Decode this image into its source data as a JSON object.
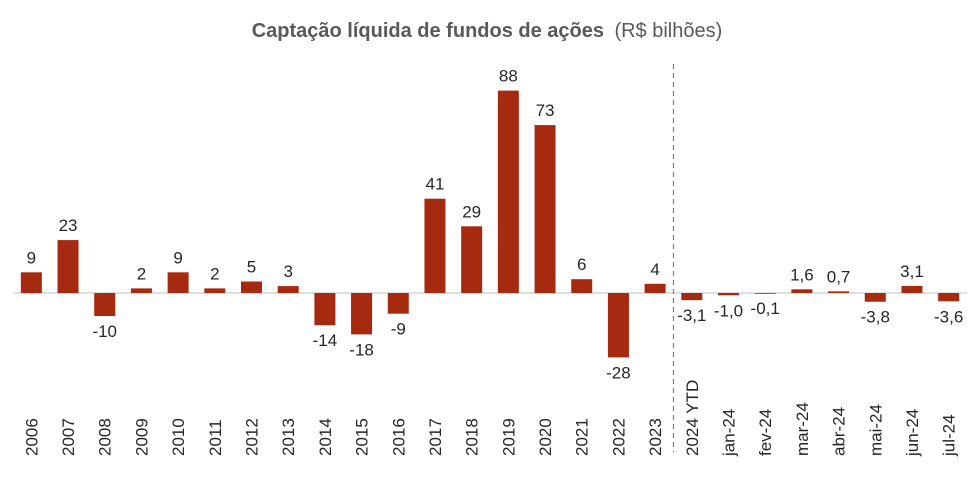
{
  "title": "Captação líquida de fundos de ações",
  "subtitle": "(R$ bilhões)",
  "colors": {
    "bar": "#A52A10",
    "axis": "#BFBFBF",
    "divider": "#7F7F7F",
    "text": "#262626",
    "title": "#595959"
  },
  "chart_data": {
    "type": "bar",
    "title": "Captação líquida de fundos de ações (R$ bilhões)",
    "xlabel": "",
    "ylabel": "",
    "grid": false,
    "legend": "none",
    "categories": [
      "2006",
      "2007",
      "2008",
      "2009",
      "2010",
      "2011",
      "2012",
      "2013",
      "2014",
      "2015",
      "2016",
      "2017",
      "2018",
      "2019",
      "2020",
      "2021",
      "2022",
      "2023",
      "2024 YTD",
      "jan-24",
      "fev-24",
      "mar-24",
      "abr-24",
      "mai-24",
      "jun-24",
      "jul-24"
    ],
    "values": [
      9,
      23,
      -10,
      2,
      9,
      2,
      5,
      3,
      -14,
      -18,
      -9,
      41,
      29,
      88,
      73,
      6,
      -28,
      4,
      -3.1,
      -1.0,
      -0.1,
      1.6,
      0.7,
      -3.8,
      3.1,
      -3.6
    ],
    "labels": [
      "9",
      "23",
      "-10",
      "2",
      "9",
      "2",
      "5",
      "3",
      "-14",
      "-18",
      "-9",
      "41",
      "29",
      "88",
      "73",
      "6",
      "-28",
      "4",
      "-3,1",
      "-1,0",
      "-0,1",
      "1,6",
      "0,7",
      "-3,8",
      "3,1",
      "-3,6"
    ],
    "divider_after": "2023",
    "ylim": [
      -28,
      88
    ]
  }
}
